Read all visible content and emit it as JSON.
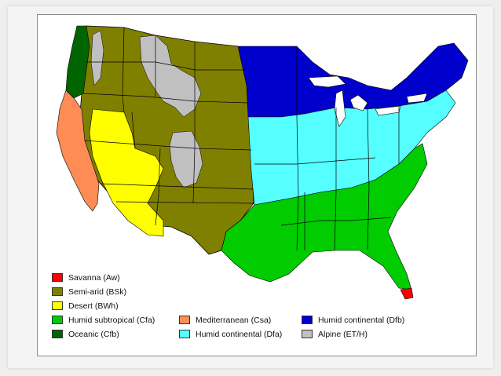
{
  "legend": [
    {
      "label": "Savanna (Aw)",
      "color": "#ff0000",
      "icon": "savanna-swatch"
    },
    {
      "label": "Semi-arid (BSk)",
      "color": "#808000",
      "icon": "semi-arid-swatch"
    },
    {
      "label": "Desert (BWh)",
      "color": "#ffff00",
      "icon": "desert-swatch"
    },
    {
      "label": "Humid subtropical (Cfa)",
      "color": "#00cc00",
      "icon": "humid-subtropical-swatch"
    },
    {
      "label": "Oceanic (Cfb)",
      "color": "#006400",
      "icon": "oceanic-swatch"
    },
    {
      "label": "Mediterranean (Csa)",
      "color": "#ff8c55",
      "icon": "mediterranean-swatch"
    },
    {
      "label": "Humid continental (Dfa)",
      "color": "#55ffff",
      "icon": "humid-continental-dfa-swatch"
    },
    {
      "label": "Humid continental (Dfb)",
      "color": "#0000cc",
      "icon": "humid-continental-dfb-swatch"
    },
    {
      "label": "Alpine (ET/H)",
      "color": "#c0c0c0",
      "icon": "alpine-swatch"
    }
  ],
  "colors": {
    "state_borders": "#000000",
    "map_background": "#ffffff",
    "slide_background": "#efefef"
  }
}
